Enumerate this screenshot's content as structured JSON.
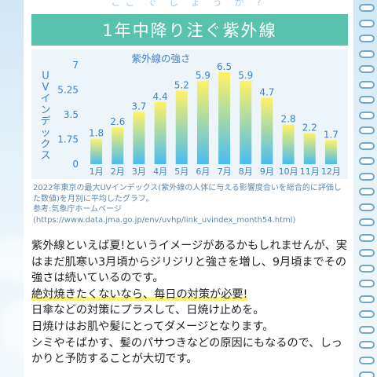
{
  "header": {
    "top_partial_text": "ここ で し ょ う か ?",
    "banner_title": "1年中降り注ぐ紫外線"
  },
  "chart_data": {
    "type": "bar",
    "title": "紫外線の強さ",
    "ylabel": "UVインデックス",
    "xlabel": "",
    "categories": [
      "1月",
      "2月",
      "3月",
      "4月",
      "5月",
      "6月",
      "7月",
      "8月",
      "9月",
      "10月",
      "11月",
      "12月"
    ],
    "values": [
      1.8,
      2.6,
      3.7,
      4.4,
      5.2,
      5.9,
      6.5,
      5.9,
      4.7,
      2.8,
      2.2,
      1.7
    ],
    "value_labels": [
      "1.8",
      "2.6",
      "3.7",
      "4.4",
      "5.2",
      "5.9",
      "6.5",
      "5.9",
      "4.7",
      "2.8",
      "2.2",
      "1.7"
    ],
    "ylim": [
      0,
      7
    ],
    "yticks": [
      "0",
      "1.75",
      "3.5",
      "5.25",
      "7"
    ],
    "ytick_values": [
      0,
      1.75,
      3.5,
      5.25,
      7
    ],
    "grid": false,
    "colors": {
      "bar_top": "#fff266",
      "bar_bottom": "#49bdf0",
      "axis_text": "#3a83c4"
    }
  },
  "caption": {
    "line1": "2022年東京の最大UVインデックス(紫外線の人体に与える影響度合いを総合的に評価した数値)を月別に平均したグラフ。",
    "line2": "参考:気象庁ホームページ",
    "line3": "(https://www.data.jma.go.jp/env/uvhp/link_uvindex_month54.html)"
  },
  "body": {
    "p1": "紫外線といえば夏!というイメージがあるかもしれませんが、実はまだ肌寒い3月頃からジリジリと強さを増し、9月頃までその強さは続いているのです。",
    "p2": "絶対焼きたくないなら、毎日の対策が必要!",
    "p3": "日傘などの対策にプラスして、日焼け止めを。",
    "p4": "日焼けはお肌や髪にとってダメージとなります。",
    "p5": "シミやそばかす、髪のパサつきなどの原因にもなるので、しっかりと予防することが大切です。"
  }
}
